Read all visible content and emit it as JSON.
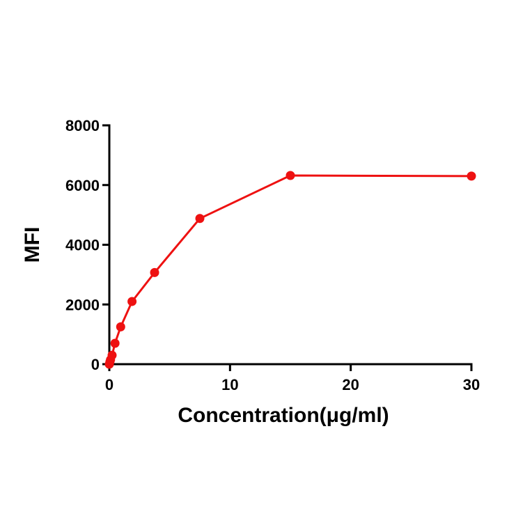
{
  "chart_data": {
    "type": "line",
    "xlabel": "Concentration(μg/ml)",
    "ylabel": "MFI",
    "xlim": [
      0,
      30
    ],
    "ylim": [
      0,
      8000
    ],
    "x_ticks": [
      0,
      10,
      20,
      30
    ],
    "y_ticks": [
      0,
      2000,
      4000,
      6000,
      8000
    ],
    "grid": false,
    "series": [
      {
        "color": "#ee1111",
        "x": [
          0,
          0.05,
          0.1,
          0.23,
          0.47,
          0.94,
          1.88,
          3.75,
          7.5,
          15,
          30
        ],
        "y": [
          0,
          80,
          150,
          300,
          700,
          1250,
          2100,
          3070,
          4880,
          6320,
          6300
        ]
      }
    ]
  }
}
